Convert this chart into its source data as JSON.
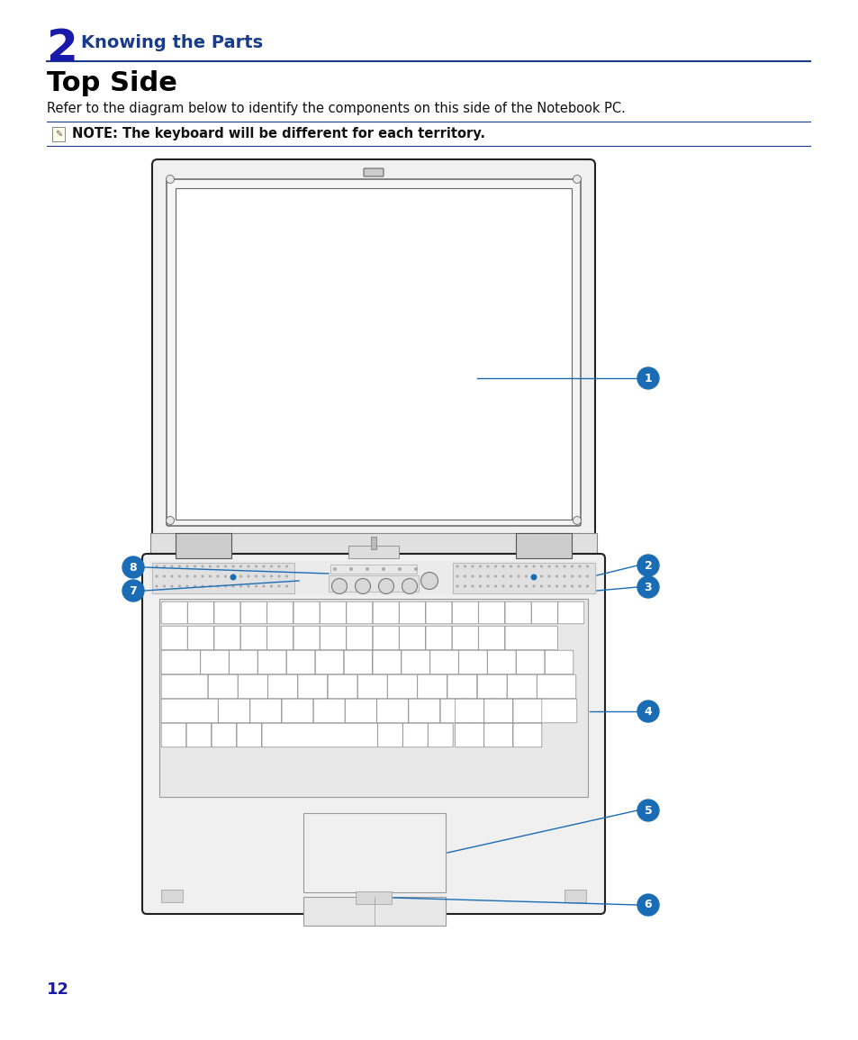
{
  "page_bg": "#ffffff",
  "chapter_number": "2",
  "chapter_number_color": "#1a1aaa",
  "chapter_number_fontsize": 36,
  "chapter_title": "Knowing the Parts",
  "chapter_title_color": "#1a3a8a",
  "chapter_title_fontsize": 14,
  "section_title": "Top Side",
  "section_title_fontsize": 22,
  "section_title_color": "#000000",
  "body_text": "Refer to the diagram below to identify the components on this side of the Notebook PC.",
  "body_text_fontsize": 10.5,
  "note_text": "NOTE: The keyboard will be different for each territory.",
  "note_text_fontsize": 10.5,
  "line_color": "#1a3a8a",
  "page_number": "12",
  "page_number_color": "#1a1aaa",
  "callout_color": "#1a6db5",
  "callout_bg": "#1a6db5",
  "callout_text_color": "#ffffff",
  "dark_line": "#222222",
  "mid_line": "#555555",
  "light_fill": "#f8f8f8",
  "key_fill": "#ffffff",
  "key_edge": "#888888",
  "speaker_fill": "#e0e0e0",
  "hinge_fill": "#d8d8d8"
}
